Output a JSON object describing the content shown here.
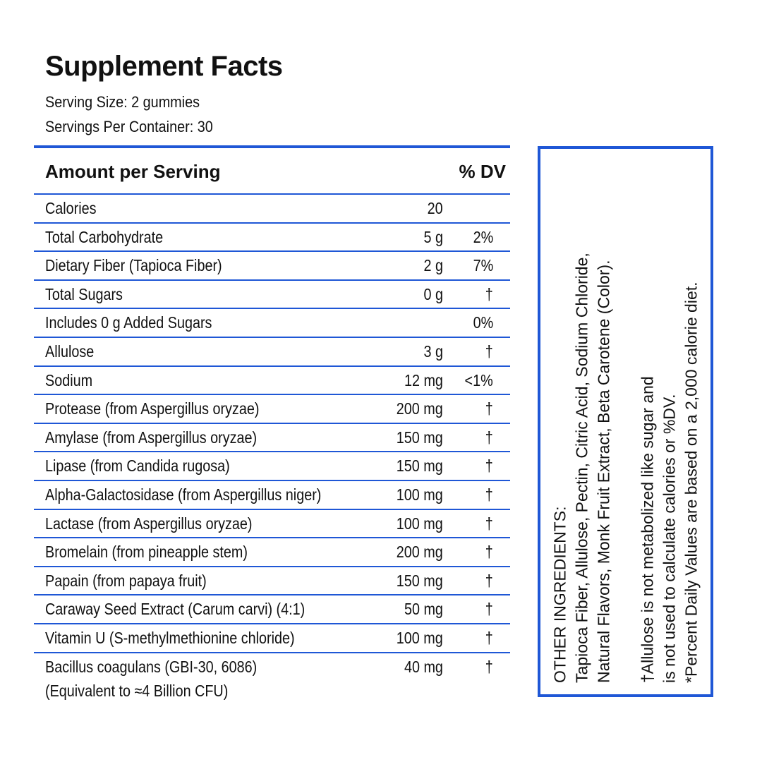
{
  "title": "Supplement Facts",
  "serving_size": "Serving Size: 2 gummies",
  "servings_per_container": "Servings Per Container: 30",
  "header": {
    "amount": "Amount per Serving",
    "dv": "% DV"
  },
  "rows": [
    {
      "name": "Calories",
      "amount": "20",
      "dv": ""
    },
    {
      "name": "Total Carbohydrate",
      "amount": "5 g",
      "dv": "2%"
    },
    {
      "name": "Dietary Fiber (Tapioca Fiber)",
      "amount": "2 g",
      "dv": "7%"
    },
    {
      "name": "Total Sugars",
      "amount": "0 g",
      "dv": "†"
    },
    {
      "name": "Includes 0 g Added Sugars",
      "amount": "",
      "dv": "0%"
    },
    {
      "name": "Allulose",
      "amount": "3 g",
      "dv": "†"
    },
    {
      "name": "Sodium",
      "amount": "12 mg",
      "dv": "<1%"
    },
    {
      "name": "Protease (from Aspergillus oryzae)",
      "amount": "200 mg",
      "dv": "†"
    },
    {
      "name": "Amylase (from Aspergillus oryzae)",
      "amount": "150 mg",
      "dv": "†"
    },
    {
      "name": "Lipase (from Candida rugosa)",
      "amount": "150 mg",
      "dv": "†"
    },
    {
      "name": "Alpha-Galactosidase (from Aspergillus niger)",
      "amount": "100 mg",
      "dv": "†"
    },
    {
      "name": "Lactase (from Aspergillus oryzae)",
      "amount": "100 mg",
      "dv": "†"
    },
    {
      "name": "Bromelain (from pineapple stem)",
      "amount": "200 mg",
      "dv": "†"
    },
    {
      "name": "Papain (from papaya fruit)",
      "amount": "150 mg",
      "dv": "†"
    },
    {
      "name": "Caraway Seed Extract (Carum carvi) (4:1)",
      "amount": "50 mg",
      "dv": "†"
    },
    {
      "name": "Vitamin U (S-methylmethionine chloride)",
      "amount": "100 mg",
      "dv": "†"
    }
  ],
  "last_row": {
    "name": "Bacillus coagulans (GBI-30, 6086)",
    "sub": "(Equivalent to ≈4 Billion CFU)",
    "amount": "40 mg",
    "dv": "†"
  },
  "side": {
    "ingredients_heading": "OTHER INGREDIENTS:",
    "ingredients_line1": "Tapioca Fiber, Allulose, Pectin, Citric Acid, Sodium Chloride,",
    "ingredients_line2": "Natural Flavors, Monk Fruit Extract, Beta Carotene (Color).",
    "note1_line1": "†Allulose is not metabolized like sugar and",
    "note1_line2": "is not used to calculate calories or %DV.",
    "note2": "*Percent Daily Values are based on a 2,000 calorie diet."
  },
  "colors": {
    "rule": "#1f57d6",
    "text": "#111111"
  }
}
